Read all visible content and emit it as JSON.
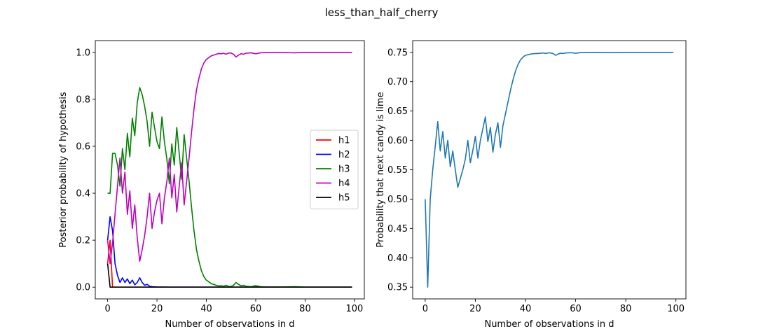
{
  "figure": {
    "title": "less_than_half_cherry"
  },
  "chart_data": [
    {
      "type": "line",
      "xlabel": "Number of observations in d",
      "ylabel": "Posterior probability of hypothesis",
      "xlim": [
        -5,
        104
      ],
      "ylim": [
        -0.05,
        1.05
      ],
      "xticks": [
        0,
        20,
        40,
        60,
        80,
        100
      ],
      "yticks": [
        0.0,
        0.2,
        0.4,
        0.6,
        0.8,
        1.0
      ],
      "ytick_labels": [
        "0.0",
        "0.2",
        "0.4",
        "0.6",
        "0.8",
        "1.0"
      ],
      "legend": "center-right",
      "series": [
        {
          "name": "h1",
          "color": "#ff0000",
          "points": [
            [
              0,
              0.1
            ],
            [
              1,
              0.2
            ],
            [
              2,
              0
            ],
            [
              99,
              0
            ]
          ]
        },
        {
          "name": "h2",
          "color": "#0000ff",
          "points": [
            [
              0,
              0.2
            ],
            [
              1,
              0.3
            ],
            [
              2,
              0.24
            ],
            [
              3,
              0.1
            ],
            [
              4,
              0.05
            ],
            [
              5,
              0.02
            ],
            [
              6,
              0.04
            ],
            [
              7,
              0.02
            ],
            [
              8,
              0.035
            ],
            [
              9,
              0.015
            ],
            [
              10,
              0.03
            ],
            [
              11,
              0.01
            ],
            [
              12,
              0.02
            ],
            [
              13,
              0.04
            ],
            [
              14,
              0.02
            ],
            [
              15,
              0.008
            ],
            [
              16,
              0.012
            ],
            [
              17,
              0.004
            ],
            [
              18,
              0.002
            ],
            [
              20,
              0.001
            ],
            [
              25,
              0
            ],
            [
              99,
              0
            ]
          ]
        },
        {
          "name": "h3",
          "color": "#008000",
          "points": [
            [
              0,
              0.4
            ],
            [
              1,
              0.4
            ],
            [
              2,
              0.57
            ],
            [
              3,
              0.57
            ],
            [
              4,
              0.52
            ],
            [
              5,
              0.43
            ],
            [
              6,
              0.59
            ],
            [
              7,
              0.5
            ],
            [
              8,
              0.655
            ],
            [
              9,
              0.555
            ],
            [
              10,
              0.72
            ],
            [
              11,
              0.645
            ],
            [
              12,
              0.785
            ],
            [
              13,
              0.85
            ],
            [
              14,
              0.82
            ],
            [
              15,
              0.77
            ],
            [
              16,
              0.705
            ],
            [
              17,
              0.6
            ],
            [
              18,
              0.745
            ],
            [
              19,
              0.68
            ],
            [
              20,
              0.62
            ],
            [
              21,
              0.59
            ],
            [
              22,
              0.725
            ],
            [
              23,
              0.62
            ],
            [
              24,
              0.545
            ],
            [
              25,
              0.44
            ],
            [
              26,
              0.61
            ],
            [
              27,
              0.52
            ],
            [
              28,
              0.68
            ],
            [
              29,
              0.57
            ],
            [
              30,
              0.46
            ],
            [
              31,
              0.65
            ],
            [
              32,
              0.55
            ],
            [
              33,
              0.45
            ],
            [
              34,
              0.34
            ],
            [
              35,
              0.24
            ],
            [
              36,
              0.16
            ],
            [
              37,
              0.11
            ],
            [
              38,
              0.07
            ],
            [
              39,
              0.045
            ],
            [
              40,
              0.03
            ],
            [
              42,
              0.015
            ],
            [
              44,
              0.008
            ],
            [
              45,
              0.005
            ],
            [
              46,
              0.006
            ],
            [
              47,
              0.004
            ],
            [
              48,
              0.008
            ],
            [
              49,
              0.003
            ],
            [
              50,
              0.003
            ],
            [
              51,
              0.008
            ],
            [
              52,
              0.02
            ],
            [
              53,
              0.012
            ],
            [
              54,
              0.006
            ],
            [
              55,
              0.008
            ],
            [
              56,
              0.004
            ],
            [
              57,
              0.003
            ],
            [
              58,
              0.002
            ],
            [
              60,
              0.006
            ],
            [
              62,
              0.002
            ],
            [
              64,
              0.001
            ],
            [
              70,
              0.001
            ],
            [
              76,
              0.002
            ],
            [
              80,
              0
            ],
            [
              99,
              0
            ]
          ]
        },
        {
          "name": "h4",
          "color": "#bf00bf",
          "points": [
            [
              0,
              0.2
            ],
            [
              1,
              0.1
            ],
            [
              2,
              0.19
            ],
            [
              3,
              0.31
            ],
            [
              4,
              0.43
            ],
            [
              5,
              0.55
            ],
            [
              6,
              0.4
            ],
            [
              7,
              0.49
            ],
            [
              8,
              0.31
            ],
            [
              9,
              0.41
            ],
            [
              10,
              0.25
            ],
            [
              11,
              0.35
            ],
            [
              12,
              0.21
            ],
            [
              13,
              0.11
            ],
            [
              14,
              0.16
            ],
            [
              15,
              0.22
            ],
            [
              16,
              0.3
            ],
            [
              17,
              0.4
            ],
            [
              18,
              0.25
            ],
            [
              19,
              0.32
            ],
            [
              20,
              0.37
            ],
            [
              21,
              0.4
            ],
            [
              22,
              0.27
            ],
            [
              23,
              0.38
            ],
            [
              24,
              0.45
            ],
            [
              25,
              0.55
            ],
            [
              26,
              0.38
            ],
            [
              27,
              0.48
            ],
            [
              28,
              0.32
            ],
            [
              29,
              0.43
            ],
            [
              30,
              0.53
            ],
            [
              31,
              0.35
            ],
            [
              32,
              0.45
            ],
            [
              33,
              0.55
            ],
            [
              34,
              0.66
            ],
            [
              35,
              0.76
            ],
            [
              36,
              0.84
            ],
            [
              37,
              0.89
            ],
            [
              38,
              0.93
            ],
            [
              39,
              0.955
            ],
            [
              40,
              0.97
            ],
            [
              42,
              0.985
            ],
            [
              44,
              0.992
            ],
            [
              45,
              0.995
            ],
            [
              46,
              0.994
            ],
            [
              47,
              0.996
            ],
            [
              48,
              0.992
            ],
            [
              49,
              0.997
            ],
            [
              50,
              0.997
            ],
            [
              51,
              0.992
            ],
            [
              52,
              0.98
            ],
            [
              53,
              0.988
            ],
            [
              54,
              0.994
            ],
            [
              55,
              0.992
            ],
            [
              56,
              0.996
            ],
            [
              57,
              0.997
            ],
            [
              58,
              0.998
            ],
            [
              60,
              0.994
            ],
            [
              62,
              0.998
            ],
            [
              64,
              0.999
            ],
            [
              70,
              0.999
            ],
            [
              76,
              0.998
            ],
            [
              80,
              1.0
            ],
            [
              99,
              1.0
            ]
          ]
        },
        {
          "name": "h5",
          "color": "#000000",
          "points": [
            [
              0,
              0.1
            ],
            [
              1,
              0
            ],
            [
              99,
              0
            ]
          ]
        }
      ]
    },
    {
      "type": "line",
      "xlabel": "Number of observations in d",
      "ylabel": "Probability that next candy is lime",
      "xlim": [
        -5,
        104
      ],
      "ylim": [
        0.33,
        0.77
      ],
      "xticks": [
        0,
        20,
        40,
        60,
        80,
        100
      ],
      "yticks": [
        0.35,
        0.4,
        0.45,
        0.5,
        0.55,
        0.6,
        0.65,
        0.7,
        0.75
      ],
      "ytick_labels": [
        "0.35",
        "0.40",
        "0.45",
        "0.50",
        "0.55",
        "0.60",
        "0.65",
        "0.70",
        "0.75"
      ],
      "series": [
        {
          "color": "#1f77b4",
          "points": [
            [
              0,
              0.5
            ],
            [
              1,
              0.35
            ],
            [
              2,
              0.5
            ],
            [
              3,
              0.55
            ],
            [
              4,
              0.59
            ],
            [
              5,
              0.632
            ],
            [
              6,
              0.582
            ],
            [
              7,
              0.615
            ],
            [
              8,
              0.57
            ],
            [
              9,
              0.6
            ],
            [
              10,
              0.555
            ],
            [
              11,
              0.582
            ],
            [
              12,
              0.55
            ],
            [
              13,
              0.52
            ],
            [
              14,
              0.535
            ],
            [
              15,
              0.55
            ],
            [
              16,
              0.568
            ],
            [
              17,
              0.6
            ],
            [
              18,
              0.562
            ],
            [
              19,
              0.583
            ],
            [
              20,
              0.607
            ],
            [
              21,
              0.57
            ],
            [
              22,
              0.6
            ],
            [
              23,
              0.62
            ],
            [
              24,
              0.64
            ],
            [
              25,
              0.598
            ],
            [
              26,
              0.622
            ],
            [
              27,
              0.58
            ],
            [
              28,
              0.61
            ],
            [
              29,
              0.63
            ],
            [
              30,
              0.588
            ],
            [
              31,
              0.625
            ],
            [
              32,
              0.645
            ],
            [
              33,
              0.665
            ],
            [
              34,
              0.685
            ],
            [
              35,
              0.703
            ],
            [
              36,
              0.718
            ],
            [
              37,
              0.729
            ],
            [
              38,
              0.737
            ],
            [
              39,
              0.742
            ],
            [
              40,
              0.745
            ],
            [
              42,
              0.747
            ],
            [
              44,
              0.748
            ],
            [
              45,
              0.748
            ],
            [
              46,
              0.7485
            ],
            [
              47,
              0.749
            ],
            [
              48,
              0.748
            ],
            [
              49,
              0.749
            ],
            [
              50,
              0.749
            ],
            [
              51,
              0.748
            ],
            [
              52,
              0.745
            ],
            [
              53,
              0.747
            ],
            [
              54,
              0.7485
            ],
            [
              55,
              0.748
            ],
            [
              56,
              0.749
            ],
            [
              57,
              0.749
            ],
            [
              58,
              0.7495
            ],
            [
              60,
              0.7485
            ],
            [
              62,
              0.7495
            ],
            [
              64,
              0.7498
            ],
            [
              70,
              0.7498
            ],
            [
              76,
              0.7495
            ],
            [
              80,
              0.75
            ],
            [
              99,
              0.75
            ]
          ]
        }
      ]
    }
  ]
}
